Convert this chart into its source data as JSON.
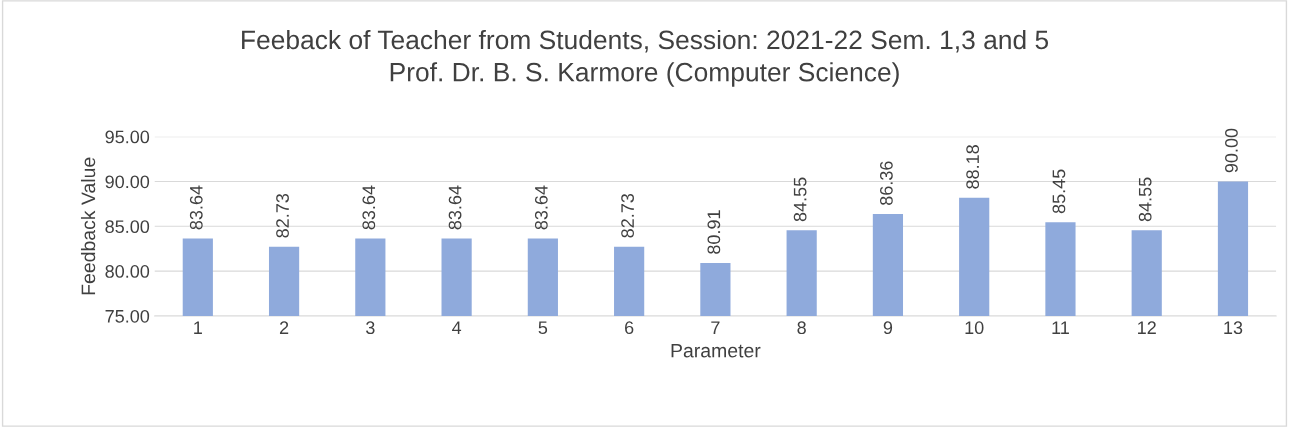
{
  "chart_data": {
    "type": "bar",
    "title": "Feeback of Teacher from Students, Session: 2021-22 Sem. 1,3 and 5\nProf. Dr. B. S. Karmore (Computer Science)",
    "xlabel": "Parameter",
    "ylabel": "Feedback Value",
    "categories": [
      "1",
      "2",
      "3",
      "4",
      "5",
      "6",
      "7",
      "8",
      "9",
      "10",
      "11",
      "12",
      "13"
    ],
    "values": [
      83.64,
      82.73,
      83.64,
      83.64,
      83.64,
      82.73,
      80.91,
      84.55,
      86.36,
      88.18,
      85.45,
      84.55,
      90.0
    ],
    "value_labels": [
      "83.64",
      "82.73",
      "83.64",
      "83.64",
      "83.64",
      "82.73",
      "80.91",
      "84.55",
      "86.36",
      "88.18",
      "85.45",
      "84.55",
      "90.00"
    ],
    "color": "#8faadc",
    "ylim": [
      75,
      95
    ],
    "yticks": [
      {
        "value": 75,
        "label": "75.00"
      },
      {
        "value": 80,
        "label": "80.00"
      },
      {
        "value": 85,
        "label": "85.00"
      },
      {
        "value": 90,
        "label": "90.00"
      },
      {
        "value": 95,
        "label": "95.00"
      }
    ],
    "grid": "y",
    "legend": false
  }
}
